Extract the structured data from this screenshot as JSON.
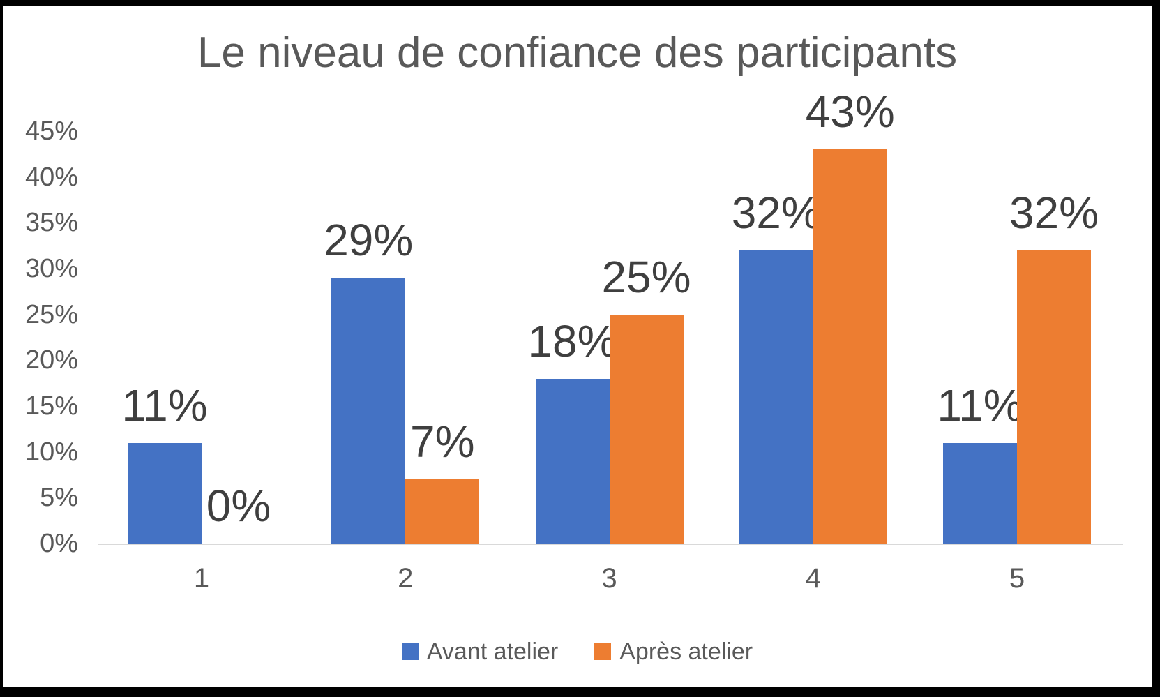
{
  "chart_data": {
    "type": "bar",
    "title": "Le niveau de confiance des participants",
    "categories": [
      "1",
      "2",
      "3",
      "4",
      "5"
    ],
    "series": [
      {
        "name": "Avant atelier",
        "color": "#4472C4",
        "values": [
          11,
          29,
          18,
          32,
          11
        ],
        "labels": [
          "11%",
          "29%",
          "18%",
          "32%",
          "11%"
        ]
      },
      {
        "name": "Après atelier",
        "color": "#ED7D31",
        "values": [
          0,
          7,
          25,
          43,
          32
        ],
        "labels": [
          "0%",
          "7%",
          "25%",
          "43%",
          "32%"
        ]
      }
    ],
    "y_axis": {
      "ticks": [
        "0%",
        "5%",
        "10%",
        "15%",
        "20%",
        "25%",
        "30%",
        "35%",
        "40%",
        "45%"
      ],
      "min": 0,
      "max": 45,
      "step": 5
    },
    "xlabel": "",
    "ylabel": "",
    "gridlines": false,
    "legend_position": "bottom",
    "colors": {
      "title_text": "#595959",
      "axis_label_text": "#595959",
      "data_label_text": "#3f3f3f",
      "axis_line": "#d9d9d9",
      "frame_border": "#000000",
      "background": "#ffffff"
    }
  }
}
